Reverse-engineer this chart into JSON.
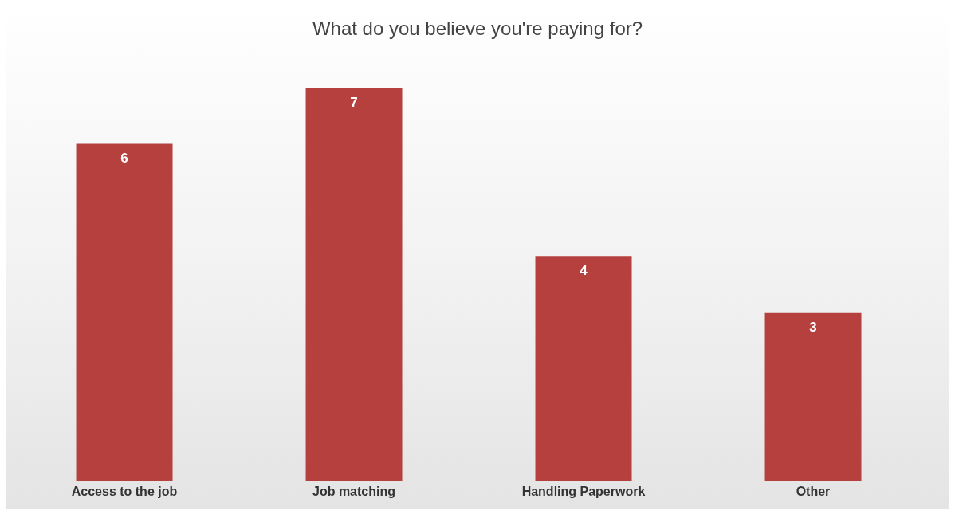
{
  "chart_data": {
    "type": "bar",
    "title": "What do you believe you're paying for?",
    "categories": [
      "Access to the job",
      "Job matching",
      "Handling Paperwork",
      "Other"
    ],
    "values": [
      6,
      7,
      4,
      3
    ],
    "color": "#b5403e",
    "data_labels": true
  }
}
